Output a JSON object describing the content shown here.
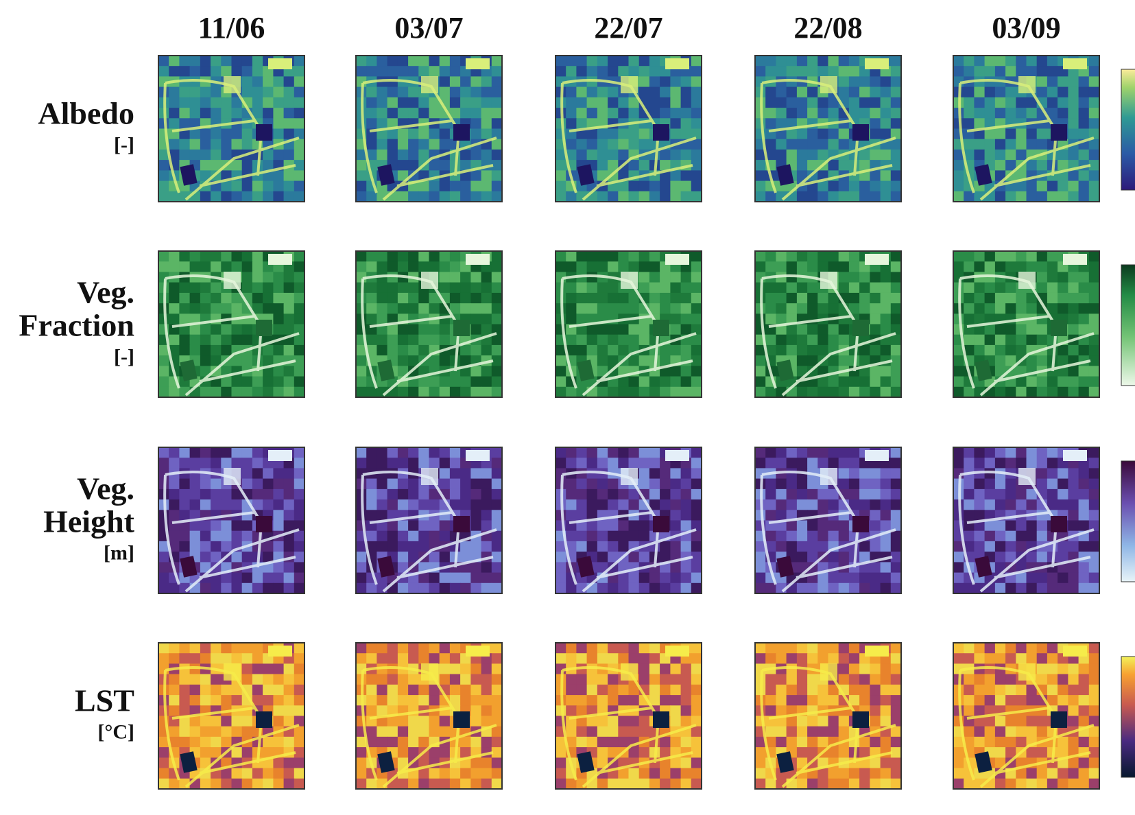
{
  "columns": [
    "11/06",
    "03/07",
    "22/07",
    "22/08",
    "03/09"
  ],
  "rows": [
    {
      "label": [
        "Albedo"
      ],
      "unit": "[-]"
    },
    {
      "label": [
        "Veg.",
        "Fraction"
      ],
      "unit": "[-]"
    },
    {
      "label": [
        "Veg.",
        "Height"
      ],
      "unit": "[m]"
    },
    {
      "label": [
        "LST"
      ],
      "unit": "[°C]"
    }
  ]
}
